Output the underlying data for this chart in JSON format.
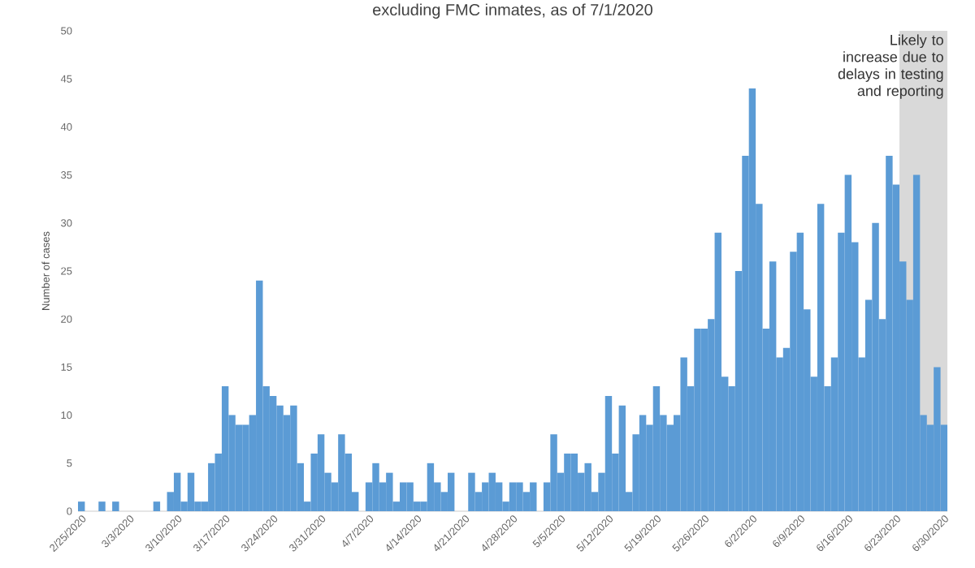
{
  "chart_data": {
    "type": "bar",
    "title": "excluding FMC inmates, as of 7/1/2020",
    "ylabel": "Number of cases",
    "x": [
      "2020-02-25",
      "2020-02-26",
      "2020-02-27",
      "2020-02-28",
      "2020-02-29",
      "2020-03-01",
      "2020-03-02",
      "2020-03-03",
      "2020-03-04",
      "2020-03-05",
      "2020-03-06",
      "2020-03-07",
      "2020-03-08",
      "2020-03-09",
      "2020-03-10",
      "2020-03-11",
      "2020-03-12",
      "2020-03-13",
      "2020-03-14",
      "2020-03-15",
      "2020-03-16",
      "2020-03-17",
      "2020-03-18",
      "2020-03-19",
      "2020-03-20",
      "2020-03-21",
      "2020-03-22",
      "2020-03-23",
      "2020-03-24",
      "2020-03-25",
      "2020-03-26",
      "2020-03-27",
      "2020-03-28",
      "2020-03-29",
      "2020-03-30",
      "2020-03-31",
      "2020-04-01",
      "2020-04-02",
      "2020-04-03",
      "2020-04-04",
      "2020-04-05",
      "2020-04-06",
      "2020-04-07",
      "2020-04-08",
      "2020-04-09",
      "2020-04-10",
      "2020-04-11",
      "2020-04-12",
      "2020-04-13",
      "2020-04-14",
      "2020-04-15",
      "2020-04-16",
      "2020-04-17",
      "2020-04-18",
      "2020-04-19",
      "2020-04-20",
      "2020-04-21",
      "2020-04-22",
      "2020-04-23",
      "2020-04-24",
      "2020-04-25",
      "2020-04-26",
      "2020-04-27",
      "2020-04-28",
      "2020-04-29",
      "2020-04-30",
      "2020-05-01",
      "2020-05-02",
      "2020-05-03",
      "2020-05-04",
      "2020-05-05",
      "2020-05-06",
      "2020-05-07",
      "2020-05-08",
      "2020-05-09",
      "2020-05-10",
      "2020-05-11",
      "2020-05-12",
      "2020-05-13",
      "2020-05-14",
      "2020-05-15",
      "2020-05-16",
      "2020-05-17",
      "2020-05-18",
      "2020-05-19",
      "2020-05-20",
      "2020-05-21",
      "2020-05-22",
      "2020-05-23",
      "2020-05-24",
      "2020-05-25",
      "2020-05-26",
      "2020-05-27",
      "2020-05-28",
      "2020-05-29",
      "2020-05-30",
      "2020-05-31",
      "2020-06-01",
      "2020-06-02",
      "2020-06-03",
      "2020-06-04",
      "2020-06-05",
      "2020-06-06",
      "2020-06-07",
      "2020-06-08",
      "2020-06-09",
      "2020-06-10",
      "2020-06-11",
      "2020-06-12",
      "2020-06-13",
      "2020-06-14",
      "2020-06-15",
      "2020-06-16",
      "2020-06-17",
      "2020-06-18",
      "2020-06-19",
      "2020-06-20",
      "2020-06-21",
      "2020-06-22",
      "2020-06-23",
      "2020-06-24",
      "2020-06-25",
      "2020-06-26",
      "2020-06-27",
      "2020-06-28",
      "2020-06-29",
      "2020-06-30"
    ],
    "values": [
      1,
      0,
      0,
      1,
      0,
      1,
      0,
      0,
      0,
      0,
      0,
      1,
      0,
      2,
      4,
      1,
      4,
      1,
      1,
      5,
      6,
      13,
      10,
      9,
      9,
      10,
      24,
      13,
      12,
      11,
      10,
      11,
      5,
      1,
      6,
      8,
      4,
      3,
      8,
      6,
      2,
      0,
      3,
      5,
      3,
      4,
      1,
      3,
      3,
      1,
      1,
      5,
      3,
      2,
      4,
      0,
      0,
      4,
      2,
      3,
      4,
      3,
      1,
      3,
      3,
      2,
      3,
      0,
      3,
      8,
      4,
      6,
      6,
      4,
      5,
      2,
      4,
      12,
      6,
      11,
      2,
      8,
      10,
      9,
      13,
      10,
      9,
      10,
      16,
      13,
      19,
      19,
      20,
      29,
      14,
      13,
      25,
      37,
      44,
      32,
      19,
      26,
      16,
      17,
      27,
      29,
      21,
      14,
      32,
      13,
      16,
      29,
      35,
      28,
      16,
      22,
      30,
      20,
      37,
      34,
      26,
      22,
      35,
      10,
      9,
      15,
      9
    ],
    "color": "#5b9bd5",
    "xlim": [
      "2020-02-24T12:00",
      "2020-06-30T12:00"
    ],
    "xticks": [
      {
        "value": "2020-02-25",
        "label": "2/25/2020"
      },
      {
        "value": "2020-03-03",
        "label": "3/3/2020"
      },
      {
        "value": "2020-03-10",
        "label": "3/10/2020"
      },
      {
        "value": "2020-03-17",
        "label": "3/17/2020"
      },
      {
        "value": "2020-03-24",
        "label": "3/24/2020"
      },
      {
        "value": "2020-03-31",
        "label": "3/31/2020"
      },
      {
        "value": "2020-04-07",
        "label": "4/7/2020"
      },
      {
        "value": "2020-04-14",
        "label": "4/14/2020"
      },
      {
        "value": "2020-04-21",
        "label": "4/21/2020"
      },
      {
        "value": "2020-04-28",
        "label": "4/28/2020"
      },
      {
        "value": "2020-05-05",
        "label": "5/5/2020"
      },
      {
        "value": "2020-05-12",
        "label": "5/12/2020"
      },
      {
        "value": "2020-05-19",
        "label": "5/19/2020"
      },
      {
        "value": "2020-05-26",
        "label": "5/26/2020"
      },
      {
        "value": "2020-06-02",
        "label": "6/2/2020"
      },
      {
        "value": "2020-06-09",
        "label": "6/9/2020"
      },
      {
        "value": "2020-06-16",
        "label": "6/16/2020"
      },
      {
        "value": "2020-06-23",
        "label": "6/23/2020"
      },
      {
        "value": "2020-06-30",
        "label": "6/30/2020"
      }
    ],
    "ylim": [
      0,
      50
    ],
    "yticks": [
      0,
      5,
      10,
      15,
      20,
      25,
      30,
      35,
      40,
      45,
      50
    ],
    "bands": [
      {
        "axis": "x",
        "from": "2020-06-23T12:00",
        "to": "2020-06-30T12:00",
        "label": "Likely to increase due to delays in testing and reporting",
        "color": "#d9d9d9"
      }
    ]
  }
}
